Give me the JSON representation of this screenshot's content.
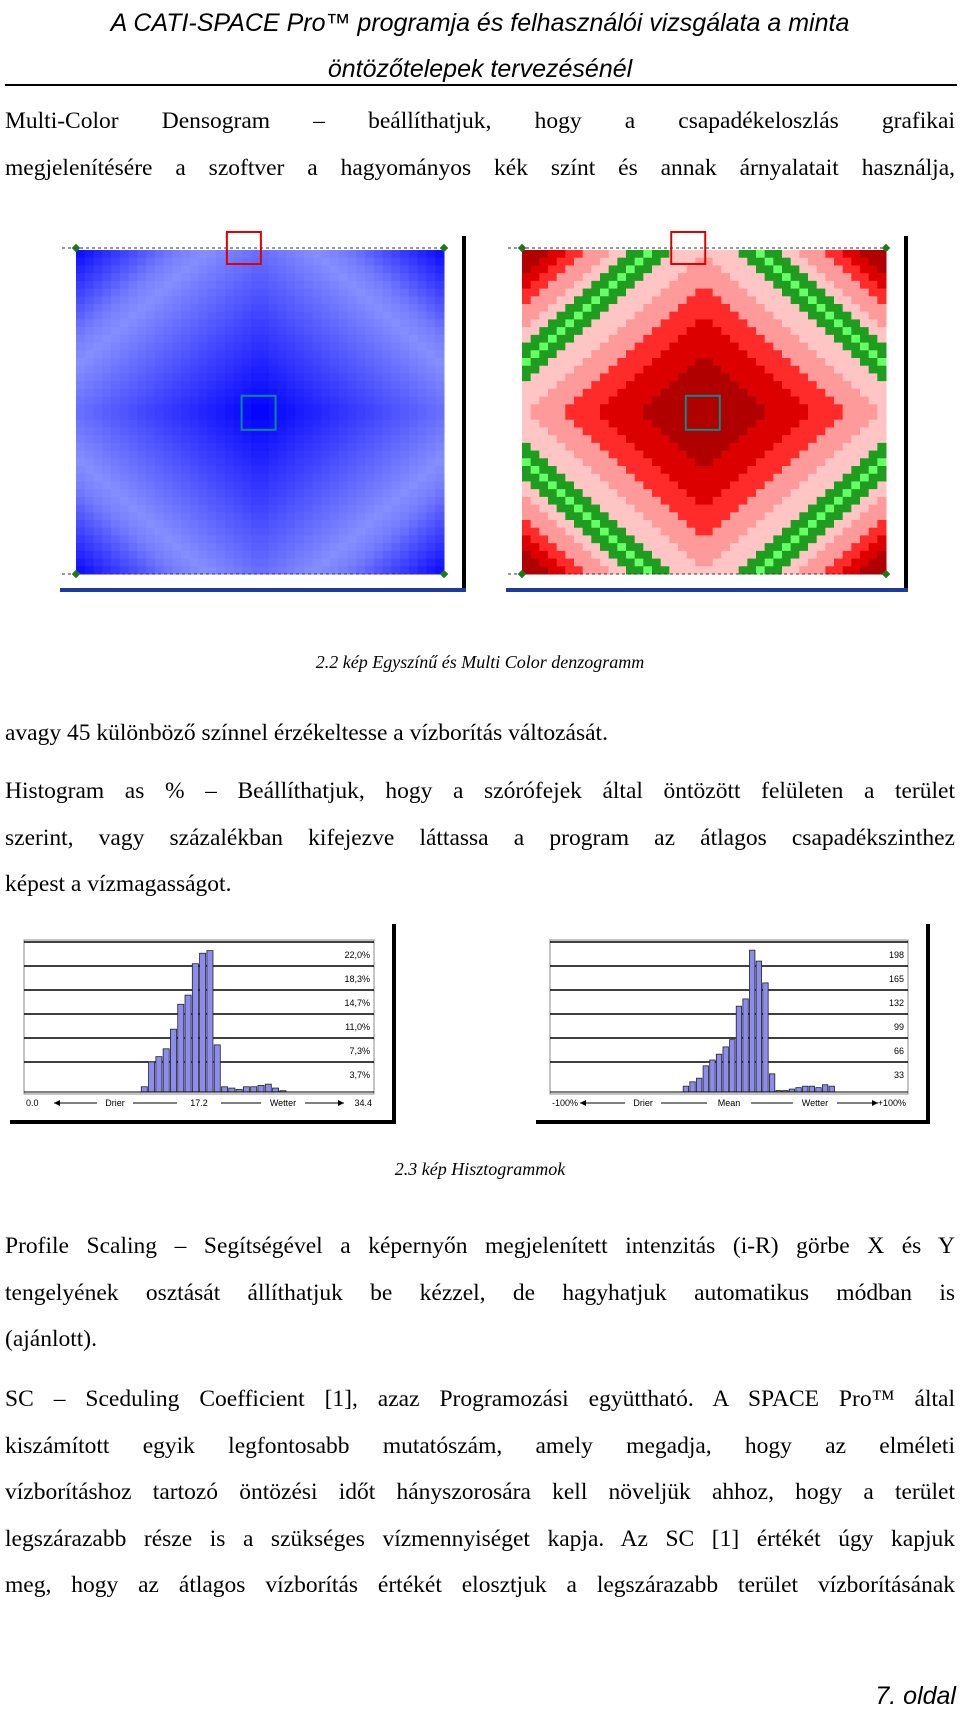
{
  "header": {
    "line1": "A CATI-SPACE Pro™ programja és felhasználói vizsgálata a minta",
    "line2": "öntözőtelepek tervezésénél"
  },
  "para1": [
    "Multi-Color Densogram – beállíthatjuk, hogy a csapadékeloszlás grafikai",
    "megjelenítésére a szoftver a hagyományos kék színt és annak árnyalatait használja,"
  ],
  "figure1": {
    "caption": "2.2 kép Egyszínű és Multi Color denzogramm"
  },
  "para2": [
    "avagy 45 különböző színnel érzékeltesse a vízborítás változását."
  ],
  "para3": [
    "Histogram as % – Beállíthatjuk, hogy a szórófejek által öntözött felületen a terület",
    "szerint, vagy százalékban kifejezve láttassa a program az átlagos csapadékszinthez",
    "képest a vízmagasságot."
  ],
  "chart_data": [
    {
      "type": "bar",
      "y_tick_labels": [
        "22,0%",
        "18,3%",
        "14,7%",
        "11,0%",
        "7,3%",
        "3,7%"
      ],
      "x_tick_labels": [
        "0.0",
        "Drier",
        "17.2",
        "Wetter",
        "34.4"
      ],
      "values": [
        0,
        0,
        0,
        0,
        0,
        0,
        0,
        0,
        0,
        0,
        0,
        0,
        0,
        0,
        0,
        0,
        0.8,
        4.6,
        5.4,
        6.6,
        9.6,
        13.4,
        14.8,
        19.6,
        21.2,
        21.6,
        7.2,
        0.8,
        0.6,
        0.4,
        0.8,
        0.8,
        1.0,
        1.2,
        0.6,
        0.2,
        0,
        0,
        0,
        0,
        0,
        0,
        0,
        0,
        0,
        0,
        0,
        0
      ],
      "ylim": [
        0,
        22
      ]
    },
    {
      "type": "bar",
      "y_tick_labels": [
        "198",
        "165",
        "132",
        "99",
        "66",
        "33"
      ],
      "x_tick_labels": [
        "-100%",
        "Drier",
        "Mean",
        "Wetter",
        "+100%"
      ],
      "values": [
        0,
        0,
        0,
        0,
        0,
        0,
        0,
        0,
        0,
        0,
        0,
        0,
        0,
        0,
        0,
        0,
        0,
        0,
        0,
        0,
        8,
        14,
        19,
        36,
        44,
        52,
        62,
        72,
        118,
        128,
        195,
        180,
        150,
        25,
        2,
        2,
        4,
        6,
        8,
        8,
        6,
        10,
        8,
        0,
        0,
        0,
        0,
        0,
        0,
        0,
        0,
        0,
        0,
        0
      ],
      "ylim": [
        0,
        198
      ]
    }
  ],
  "figure2": {
    "caption": "2.3 kép Hisztogrammok"
  },
  "para4": [
    "Profile Scaling – Segítségével a képernyőn megjelenített intenzitás (i-R) görbe X és Y",
    "tengelyének osztását állíthatjuk be kézzel, de hagyhatjuk automatikus módban is",
    "(ajánlott)."
  ],
  "para5": [
    "SC – Sceduling Coefficient [1], azaz Programozási együttható. A SPACE Pro™ által",
    "kiszámított egyik legfontosabb mutatószám, amely megadja, hogy az elméleti",
    "vízborításhoz tartozó öntözési időt hányszorosára kell növeljük ahhoz, hogy a terület",
    "legszárazabb része is a szükséges vízmennyiséget kapja. Az SC [1] értékét úgy kapjuk",
    "meg, hogy az átlagos vízborítás értékét elosztjuk a legszárazabb terület vízborításának"
  ],
  "footer": {
    "page": "7. oldal"
  }
}
